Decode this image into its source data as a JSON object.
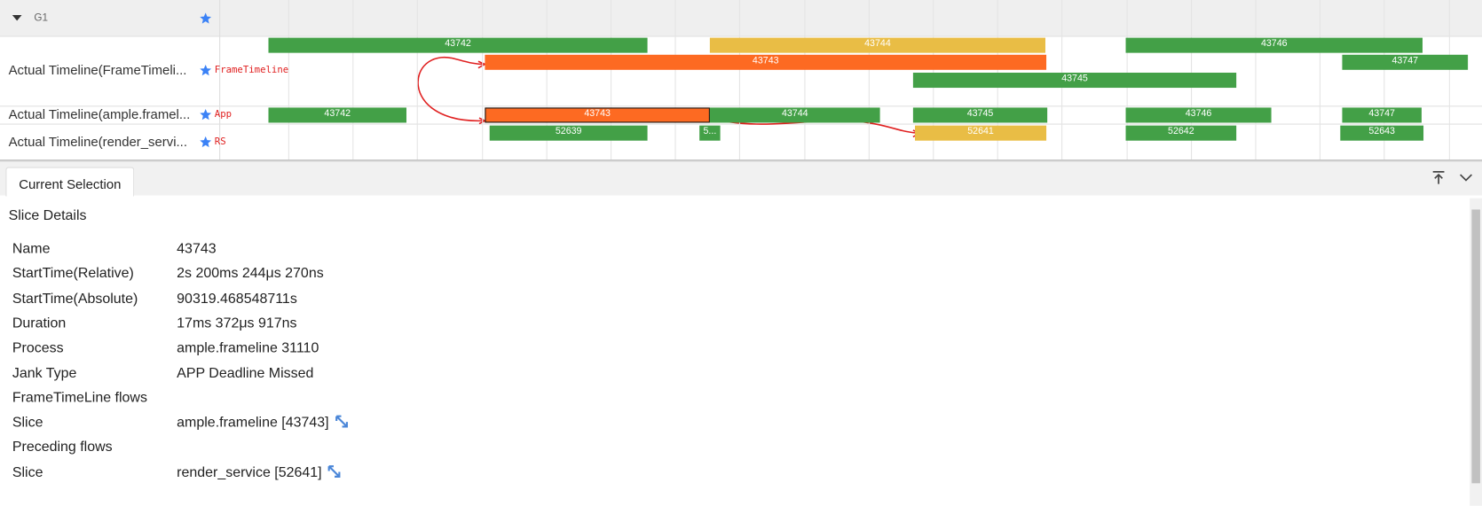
{
  "timeline": {
    "group": "G1",
    "rows": [
      {
        "label": "Actual Timeline(FrameTimeli...",
        "tag": "FrameTimeline",
        "slices": [
          "43742",
          "43744",
          "43746",
          "43743",
          "43747",
          "43745"
        ]
      },
      {
        "label": "Actual Timeline(ample.framel...",
        "tag": "App",
        "slices": [
          "43742",
          "43743",
          "43744",
          "43745",
          "43746",
          "43747"
        ]
      },
      {
        "label": "Actual Timeline(render_servi...",
        "tag": "RS",
        "slices": [
          "52639",
          "5...",
          "52641",
          "52642",
          "52643"
        ]
      }
    ]
  },
  "selection": {
    "tab": "Current Selection",
    "title": "Slice Details",
    "rows": [
      {
        "key": "Name",
        "value": "43743"
      },
      {
        "key": "StartTime(Relative)",
        "value": "2s 200ms 244μs 270ns"
      },
      {
        "key": "StartTime(Absolute)",
        "value": "90319.468548711s"
      },
      {
        "key": "Duration",
        "value": "17ms 372μs 917ns"
      },
      {
        "key": "Process",
        "value": "ample.frameline 31110"
      },
      {
        "key": "Jank Type",
        "value": "APP Deadline Missed"
      },
      {
        "key": "FrameTimeLine flows"
      },
      {
        "key": "Slice",
        "value": "ample.frameline [43743]"
      },
      {
        "key": "Preceding flows"
      },
      {
        "key": "Slice",
        "value": "render_service [52641]"
      }
    ]
  }
}
